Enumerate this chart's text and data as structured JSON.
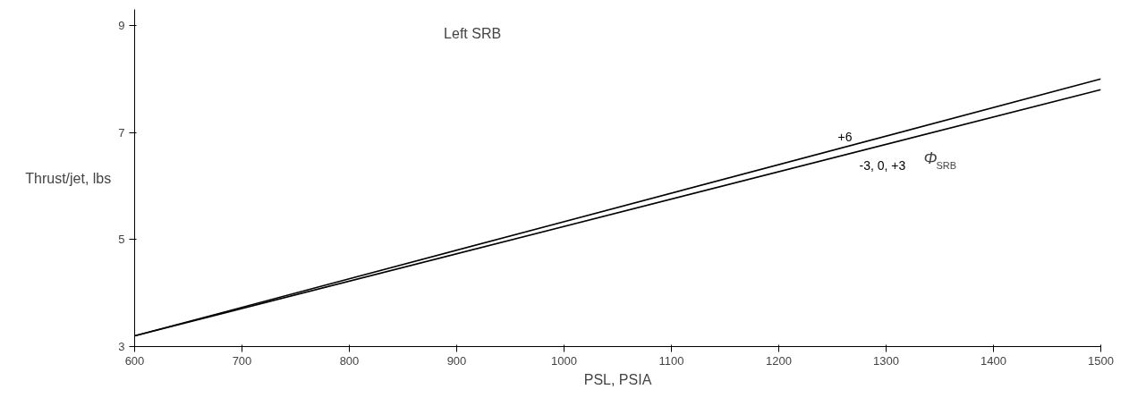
{
  "chart_data": {
    "type": "line",
    "xlabel": "PSL, PSIA",
    "ylabel": "Thrust/jet, lbs",
    "legend_title": "Φ$_{SRB}$",
    "annotations": [
      "Left SRB"
    ],
    "x": [
      600,
      1500
    ],
    "series": [
      {
        "name": "+6",
        "color": "#000000",
        "values": [
          3.2,
          8.0
        ]
      },
      {
        "name": "-3, 0, +3",
        "color": "#000000",
        "values": [
          3.2,
          7.8
        ]
      }
    ],
    "xlim": [
      600,
      1500
    ],
    "ylim": [
      3,
      9.3
    ],
    "xticks": [
      600,
      700,
      800,
      900,
      1000,
      1100,
      1200,
      1300,
      1400,
      1500
    ],
    "yticks": [
      3,
      5,
      7,
      9
    ],
    "grid": false,
    "legend": false,
    "marker": "none",
    "line_style": "solid"
  }
}
